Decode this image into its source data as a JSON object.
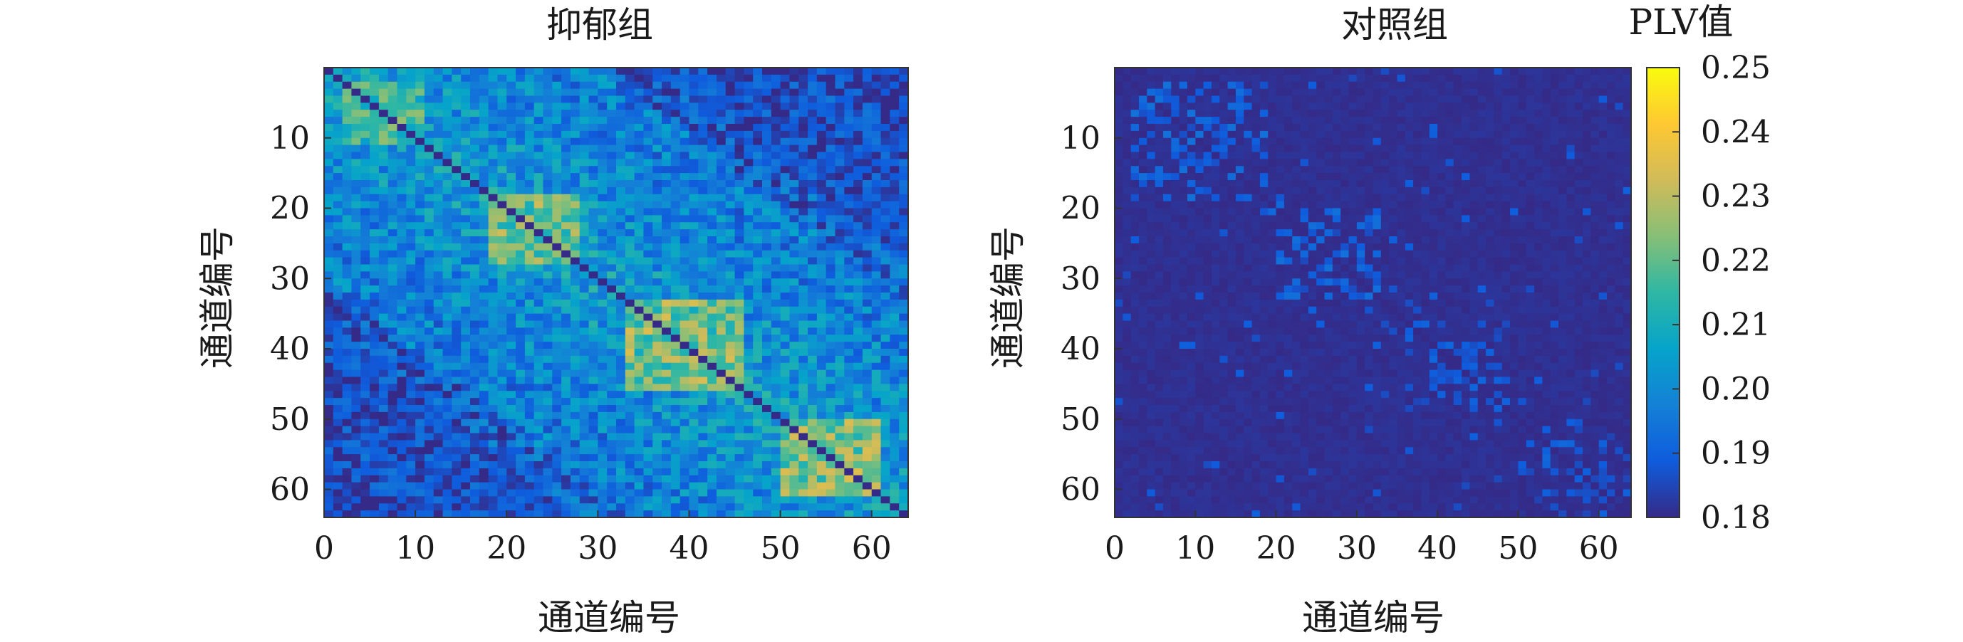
{
  "chart_data": [
    {
      "type": "heatmap",
      "title": "抑郁组",
      "xlabel": "通道编号",
      "ylabel": "通道编号",
      "x_ticks": [
        "0",
        "10",
        "20",
        "30",
        "40",
        "50",
        "60"
      ],
      "y_ticks": [
        "10",
        "20",
        "30",
        "40",
        "50",
        "60"
      ],
      "xlim": [
        0,
        64
      ],
      "ylim": [
        0,
        64
      ],
      "size": 64,
      "value_range": [
        0.18,
        0.25
      ],
      "pattern": "moderate-high connectivity throughout with strongest block structure near the diagonal",
      "diagonal_blocks": [
        {
          "range": [
            2,
            10
          ],
          "level": 0.225
        },
        {
          "range": [
            18,
            27
          ],
          "level": 0.23
        },
        {
          "range": [
            33,
            45
          ],
          "level": 0.232
        },
        {
          "range": [
            50,
            60
          ],
          "level": 0.233
        }
      ]
    },
    {
      "type": "heatmap",
      "title": "对照组",
      "xlabel": "通道编号",
      "ylabel": "通道编号",
      "x_ticks": [
        "0",
        "10",
        "20",
        "30",
        "40",
        "50",
        "60"
      ],
      "y_ticks": [
        "10",
        "20",
        "30",
        "40",
        "50",
        "60"
      ],
      "xlim": [
        0,
        64
      ],
      "ylim": [
        0,
        64
      ],
      "size": 64,
      "value_range": [
        0.18,
        0.25
      ],
      "pattern": "low connectivity almost everywhere with faint near-diagonal cells",
      "diagonal_blocks": [
        {
          "range": [
            2,
            18
          ],
          "level": 0.19
        },
        {
          "range": [
            20,
            32
          ],
          "level": 0.19
        },
        {
          "range": [
            36,
            48
          ],
          "level": 0.188
        },
        {
          "range": [
            50,
            64
          ],
          "level": 0.187
        }
      ]
    }
  ],
  "colorbar": {
    "label": "PLV值",
    "ticks": [
      "0.25",
      "0.24",
      "0.23",
      "0.22",
      "0.21",
      "0.20",
      "0.19",
      "0.18"
    ],
    "range": [
      0.18,
      0.25
    ],
    "colormap": "parula",
    "colors": [
      "#352a87",
      "#0f5cdd",
      "#1481d6",
      "#06a4ca",
      "#2eb7a4",
      "#87bf77",
      "#d1bb59",
      "#fec832",
      "#f9fb0e"
    ]
  }
}
